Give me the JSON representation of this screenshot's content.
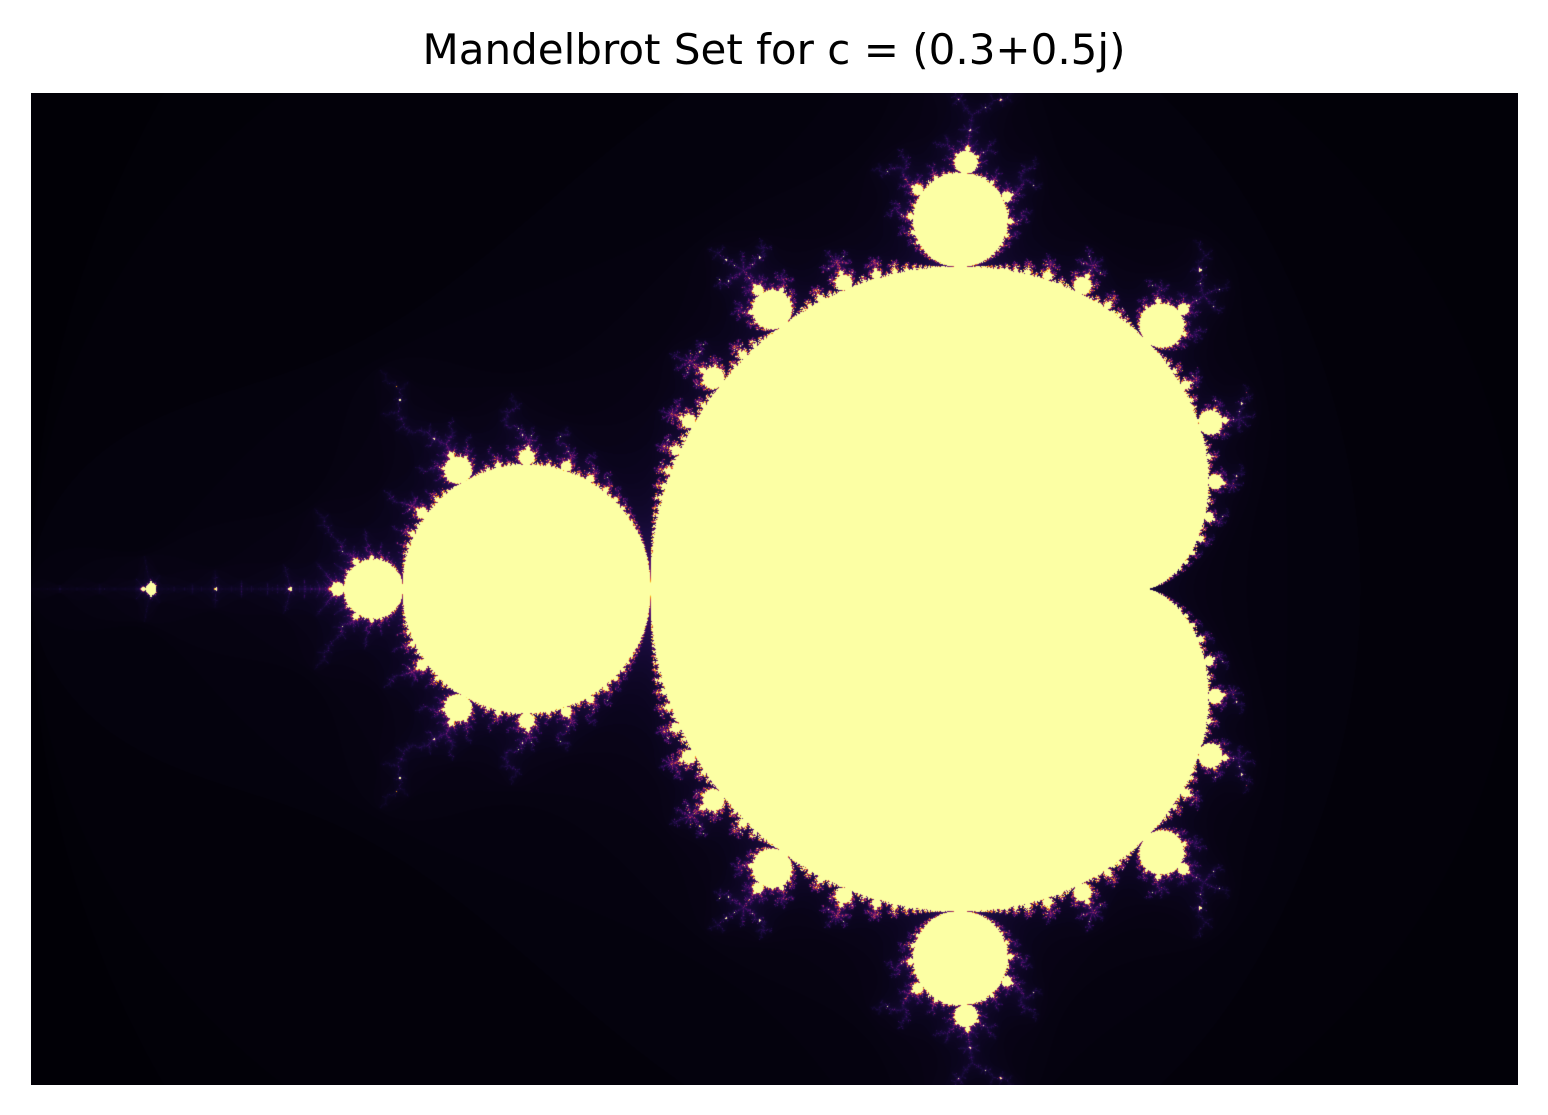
{
  "chart_data": {
    "type": "heatmap",
    "title": "Mandelbrot Set for c = (0.3+0.5j)",
    "xlabel": "",
    "ylabel": "",
    "axes_visible": false,
    "xlim": [
      -2.0,
      1.0
    ],
    "ylim": [
      -1.0,
      1.0
    ],
    "max_iter": 256,
    "colormap": "inferno",
    "colormap_stops": [
      "#000004",
      "#1b0c41",
      "#4a0c6b",
      "#781c6d",
      "#a52c60",
      "#cf4446",
      "#ed6925",
      "#fb9b06",
      "#f7d13d",
      "#fcffa4"
    ],
    "inside_color": "#fcffa4",
    "background": "#ffffff"
  }
}
